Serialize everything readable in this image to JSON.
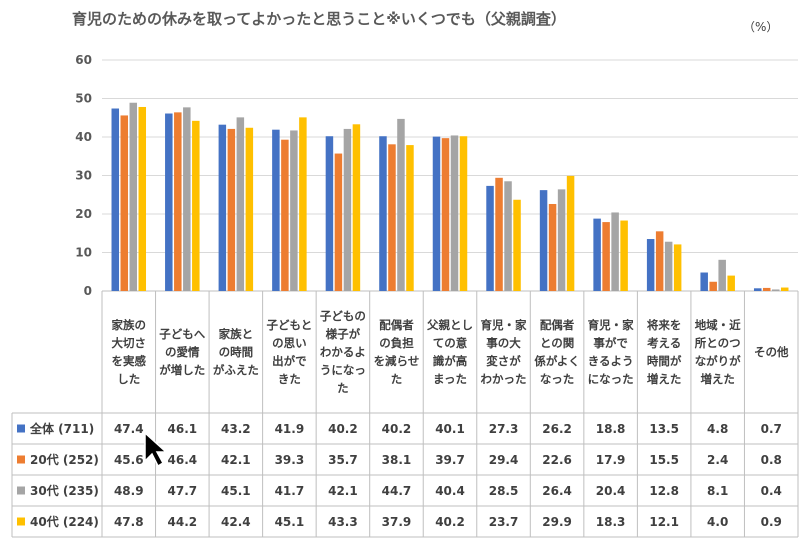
{
  "title": "育児のための休みを取ってよかったと思うこと※いくつでも（父親調査）",
  "unit": "（%）",
  "chart_data": {
    "type": "bar",
    "title": "育児のための休みを取ってよかったと思うこと※いくつでも（父親調査）",
    "ylabel": "（%）",
    "ylim": [
      0,
      60
    ],
    "yticks": [
      0,
      10,
      20,
      30,
      40,
      50,
      60
    ],
    "grid": true,
    "legend": "table-left",
    "categories": [
      "家族の大切さを実感した",
      "子どもへの愛情が増した",
      "家族との時間がふえた",
      "子どもとの思い出ができた",
      "子どもの様子がわかるようになった",
      "配偶者の負担を減らせた",
      "父親としての意識が高まった",
      "育児・家事の大変さがわかった",
      "配偶者との関係がよくなった",
      "育児・家事ができるようになった",
      "将来を考える時間が増えた",
      "地域・近所とのつながりが増えた",
      "その他"
    ],
    "category_lines": [
      [
        "家族の",
        "大切さ",
        "を実感",
        "した"
      ],
      [
        "子どもへ",
        "の愛情",
        "が増した"
      ],
      [
        "家族と",
        "の時間",
        "がふえた"
      ],
      [
        "子どもと",
        "の思い",
        "出がで",
        "きた"
      ],
      [
        "子どもの",
        "様子が",
        "わかるよ",
        "うになっ",
        "た"
      ],
      [
        "配偶者",
        "の負担",
        "を減らせ",
        "た"
      ],
      [
        "父親とし",
        "ての意",
        "識が高",
        "まった"
      ],
      [
        "育児・家",
        "事の大",
        "変さが",
        "わかった"
      ],
      [
        "配偶者",
        "との関",
        "係がよく",
        "なった"
      ],
      [
        "育児・家",
        "事がで",
        "きるよう",
        "になった"
      ],
      [
        "将来を",
        "考える",
        "時間が",
        "増えた"
      ],
      [
        "地域・近",
        "所とのつ",
        "ながりが",
        "増えた"
      ],
      [
        "その他"
      ]
    ],
    "series": [
      {
        "name": "全体 (711)",
        "color": "#4472C4",
        "values": [
          47.4,
          46.1,
          43.2,
          41.9,
          40.2,
          40.2,
          40.1,
          27.3,
          26.2,
          18.8,
          13.5,
          4.8,
          0.7
        ],
        "labels": [
          "47.4",
          "46.1",
          "43.2",
          "41.9",
          "40.2",
          "40.2",
          "40.1",
          "27.3",
          "26.2",
          "18.8",
          "13.5",
          "4.8",
          "0.7"
        ]
      },
      {
        "name": "20代 (252)",
        "color": "#ED7D31",
        "values": [
          45.6,
          46.4,
          42.1,
          39.3,
          35.7,
          38.1,
          39.7,
          29.4,
          22.6,
          17.9,
          15.5,
          2.4,
          0.8
        ],
        "labels": [
          "45.6",
          "46.4",
          "42.1",
          "39.3",
          "35.7",
          "38.1",
          "39.7",
          "29.4",
          "22.6",
          "17.9",
          "15.5",
          "2.4",
          "0.8"
        ]
      },
      {
        "name": "30代 (235)",
        "color": "#A5A5A5",
        "values": [
          48.9,
          47.7,
          45.1,
          41.7,
          42.1,
          44.7,
          40.4,
          28.5,
          26.4,
          20.4,
          12.8,
          8.1,
          0.4
        ],
        "labels": [
          "48.9",
          "47.7",
          "45.1",
          "41.7",
          "42.1",
          "44.7",
          "40.4",
          "28.5",
          "26.4",
          "20.4",
          "12.8",
          "8.1",
          "0.4"
        ]
      },
      {
        "name": "40代 (224)",
        "color": "#FFC000",
        "values": [
          47.8,
          44.2,
          42.4,
          45.1,
          43.3,
          37.9,
          40.2,
          23.7,
          29.9,
          18.3,
          12.1,
          4.0,
          0.9
        ],
        "labels": [
          "47.8",
          "44.2",
          "42.4",
          "45.1",
          "43.3",
          "37.9",
          "40.2",
          "23.7",
          "29.9",
          "18.3",
          "12.1",
          "4.0",
          "0.9"
        ]
      }
    ]
  }
}
